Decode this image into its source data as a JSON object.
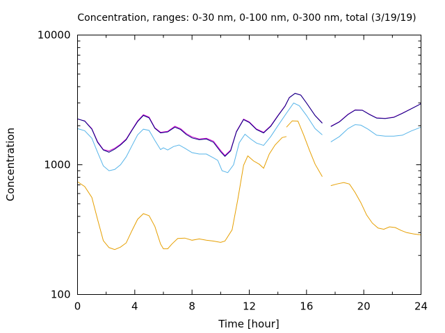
{
  "chart_data": {
    "type": "line",
    "title": "Concentration, ranges: 0-30 nm, 0-100 nm, 0-300 nm, total (3/19/19)",
    "xlabel": "Time [hour]",
    "ylabel": "Concentration",
    "xlim": [
      0,
      24
    ],
    "ylim": [
      100,
      10000
    ],
    "yscale": "log",
    "grid": false,
    "x_ticks": [
      0,
      4,
      8,
      12,
      16,
      20,
      24
    ],
    "x_tick_labels": [
      "0",
      "4",
      "8",
      "12",
      "16",
      "20",
      "24"
    ],
    "y_ticks": [
      100,
      1000,
      10000
    ],
    "y_tick_labels": [
      "100",
      "1000",
      "10000"
    ],
    "series": [
      {
        "color": "#e69f00",
        "segments": [
          [
            [
              0,
              740
            ],
            [
              0.5,
              680
            ],
            [
              1,
              560
            ],
            [
              1.4,
              380
            ],
            [
              1.8,
              260
            ],
            [
              2.2,
              230
            ],
            [
              2.6,
              222
            ],
            [
              3,
              232
            ],
            [
              3.4,
              250
            ],
            [
              3.8,
              310
            ],
            [
              4.2,
              380
            ],
            [
              4.6,
              420
            ],
            [
              5,
              405
            ],
            [
              5.4,
              335
            ],
            [
              5.8,
              245
            ],
            [
              6,
              225
            ],
            [
              6.3,
              225
            ],
            [
              6.6,
              245
            ],
            [
              7,
              270
            ],
            [
              7.5,
              272
            ],
            [
              8,
              262
            ],
            [
              8.5,
              268
            ],
            [
              9,
              262
            ],
            [
              9.5,
              258
            ],
            [
              10,
              252
            ],
            [
              10.3,
              258
            ],
            [
              10.8,
              315
            ],
            [
              11.2,
              540
            ],
            [
              11.6,
              990
            ],
            [
              11.9,
              1170
            ],
            [
              12.3,
              1070
            ],
            [
              12.7,
              1010
            ],
            [
              13,
              940
            ],
            [
              13.4,
              1210
            ],
            [
              13.8,
              1420
            ],
            [
              14.3,
              1620
            ],
            [
              14.6,
              1650
            ]
          ],
          [
            [
              14.6,
              1950
            ],
            [
              15,
              2180
            ],
            [
              15.4,
              2170
            ],
            [
              15.8,
              1700
            ],
            [
              16.2,
              1300
            ],
            [
              16.6,
              1010
            ],
            [
              17.1,
              810
            ]
          ],
          [
            [
              17.7,
              690
            ],
            [
              18.1,
              710
            ],
            [
              18.6,
              730
            ],
            [
              19,
              710
            ],
            [
              19.4,
              610
            ],
            [
              19.8,
              510
            ],
            [
              20.2,
              410
            ],
            [
              20.6,
              355
            ],
            [
              21,
              325
            ],
            [
              21.4,
              318
            ],
            [
              21.8,
              332
            ],
            [
              22.2,
              328
            ],
            [
              22.6,
              312
            ],
            [
              23,
              300
            ],
            [
              23.5,
              293
            ],
            [
              24,
              288
            ]
          ]
        ]
      },
      {
        "color": "#56b4e9",
        "segments": [
          [
            [
              0,
              1900
            ],
            [
              0.5,
              1830
            ],
            [
              1,
              1600
            ],
            [
              1.4,
              1250
            ],
            [
              1.8,
              980
            ],
            [
              2.2,
              900
            ],
            [
              2.6,
              920
            ],
            [
              3,
              1000
            ],
            [
              3.4,
              1150
            ],
            [
              3.8,
              1400
            ],
            [
              4.2,
              1700
            ],
            [
              4.6,
              1880
            ],
            [
              5,
              1840
            ],
            [
              5.4,
              1540
            ],
            [
              5.8,
              1310
            ],
            [
              6,
              1350
            ],
            [
              6.3,
              1300
            ],
            [
              6.7,
              1380
            ],
            [
              7.1,
              1420
            ],
            [
              7.5,
              1340
            ],
            [
              8,
              1240
            ],
            [
              8.5,
              1210
            ],
            [
              9,
              1210
            ],
            [
              9.5,
              1130
            ],
            [
              9.8,
              1080
            ],
            [
              10.1,
              900
            ],
            [
              10.5,
              870
            ],
            [
              10.9,
              1000
            ],
            [
              11.3,
              1480
            ],
            [
              11.7,
              1720
            ],
            [
              12.1,
              1580
            ],
            [
              12.5,
              1470
            ],
            [
              13,
              1410
            ],
            [
              13.5,
              1650
            ],
            [
              14,
              2000
            ],
            [
              14.6,
              2500
            ],
            [
              15.1,
              2990
            ],
            [
              15.5,
              2850
            ],
            [
              16,
              2400
            ],
            [
              16.6,
              1900
            ],
            [
              17.1,
              1700
            ]
          ],
          [
            [
              17.7,
              1500
            ],
            [
              18.3,
              1650
            ],
            [
              18.9,
              1900
            ],
            [
              19.4,
              2040
            ],
            [
              19.8,
              2020
            ],
            [
              20.3,
              1880
            ],
            [
              20.9,
              1690
            ],
            [
              21.5,
              1660
            ],
            [
              22.1,
              1660
            ],
            [
              22.7,
              1690
            ],
            [
              23.3,
              1820
            ],
            [
              24,
              1950
            ]
          ]
        ]
      },
      {
        "color": "#cc00cc",
        "segments": [
          [
            [
              0,
              2250
            ],
            [
              0.5,
              2180
            ],
            [
              1,
              1900
            ],
            [
              1.4,
              1510
            ],
            [
              1.8,
              1310
            ],
            [
              2.2,
              1280
            ],
            [
              2.6,
              1340
            ],
            [
              3,
              1440
            ],
            [
              3.4,
              1580
            ],
            [
              3.8,
              1860
            ],
            [
              4.2,
              2180
            ],
            [
              4.6,
              2430
            ],
            [
              5,
              2330
            ],
            [
              5.4,
              1930
            ],
            [
              5.8,
              1780
            ],
            [
              6.3,
              1810
            ],
            [
              6.8,
              1980
            ],
            [
              7.2,
              1900
            ],
            [
              7.6,
              1740
            ],
            [
              8,
              1640
            ],
            [
              8.5,
              1580
            ],
            [
              9,
              1600
            ],
            [
              9.5,
              1520
            ],
            [
              10,
              1290
            ],
            [
              10.3,
              1180
            ],
            [
              10.7,
              1300
            ],
            [
              11.1,
              1810
            ],
            [
              11.6,
              2250
            ],
            [
              12,
              2140
            ],
            [
              12.5,
              1890
            ],
            [
              13,
              1780
            ],
            [
              13.5,
              2000
            ],
            [
              14,
              2400
            ],
            [
              14.5,
              2850
            ],
            [
              14.8,
              3300
            ],
            [
              15.2,
              3560
            ],
            [
              15.6,
              3450
            ],
            [
              16,
              3000
            ],
            [
              16.6,
              2400
            ],
            [
              17.1,
              2100
            ]
          ],
          [
            [
              17.7,
              1980
            ],
            [
              18.3,
              2150
            ],
            [
              18.9,
              2450
            ],
            [
              19.4,
              2650
            ],
            [
              19.9,
              2640
            ],
            [
              20.4,
              2450
            ],
            [
              20.9,
              2300
            ],
            [
              21.5,
              2280
            ],
            [
              22.1,
              2330
            ],
            [
              22.7,
              2500
            ],
            [
              23.3,
              2700
            ],
            [
              24,
              2960
            ]
          ]
        ]
      },
      {
        "color": "#00007f",
        "segments": [
          [
            [
              0,
              2260
            ],
            [
              0.5,
              2170
            ],
            [
              1,
              1880
            ],
            [
              1.4,
              1490
            ],
            [
              1.8,
              1300
            ],
            [
              2.2,
              1250
            ],
            [
              2.6,
              1320
            ],
            [
              3,
              1420
            ],
            [
              3.4,
              1560
            ],
            [
              3.8,
              1840
            ],
            [
              4.2,
              2150
            ],
            [
              4.6,
              2400
            ],
            [
              5,
              2300
            ],
            [
              5.4,
              1910
            ],
            [
              5.8,
              1760
            ],
            [
              6.3,
              1790
            ],
            [
              6.8,
              1950
            ],
            [
              7.2,
              1870
            ],
            [
              7.6,
              1710
            ],
            [
              8,
              1610
            ],
            [
              8.5,
              1560
            ],
            [
              9,
              1580
            ],
            [
              9.5,
              1490
            ],
            [
              10,
              1260
            ],
            [
              10.3,
              1160
            ],
            [
              10.7,
              1280
            ],
            [
              11.1,
              1790
            ],
            [
              11.6,
              2230
            ],
            [
              12,
              2120
            ],
            [
              12.5,
              1870
            ],
            [
              13,
              1760
            ],
            [
              13.5,
              1980
            ],
            [
              14,
              2380
            ],
            [
              14.5,
              2830
            ],
            [
              14.8,
              3290
            ],
            [
              15.2,
              3550
            ],
            [
              15.6,
              3440
            ],
            [
              16,
              2990
            ],
            [
              16.6,
              2390
            ],
            [
              17.1,
              2090
            ]
          ],
          [
            [
              17.7,
              1970
            ],
            [
              18.3,
              2140
            ],
            [
              18.9,
              2440
            ],
            [
              19.4,
              2640
            ],
            [
              19.9,
              2630
            ],
            [
              20.4,
              2440
            ],
            [
              20.9,
              2290
            ],
            [
              21.5,
              2270
            ],
            [
              22.1,
              2320
            ],
            [
              22.7,
              2490
            ],
            [
              23.3,
              2690
            ],
            [
              24,
              2950
            ]
          ]
        ]
      }
    ]
  }
}
